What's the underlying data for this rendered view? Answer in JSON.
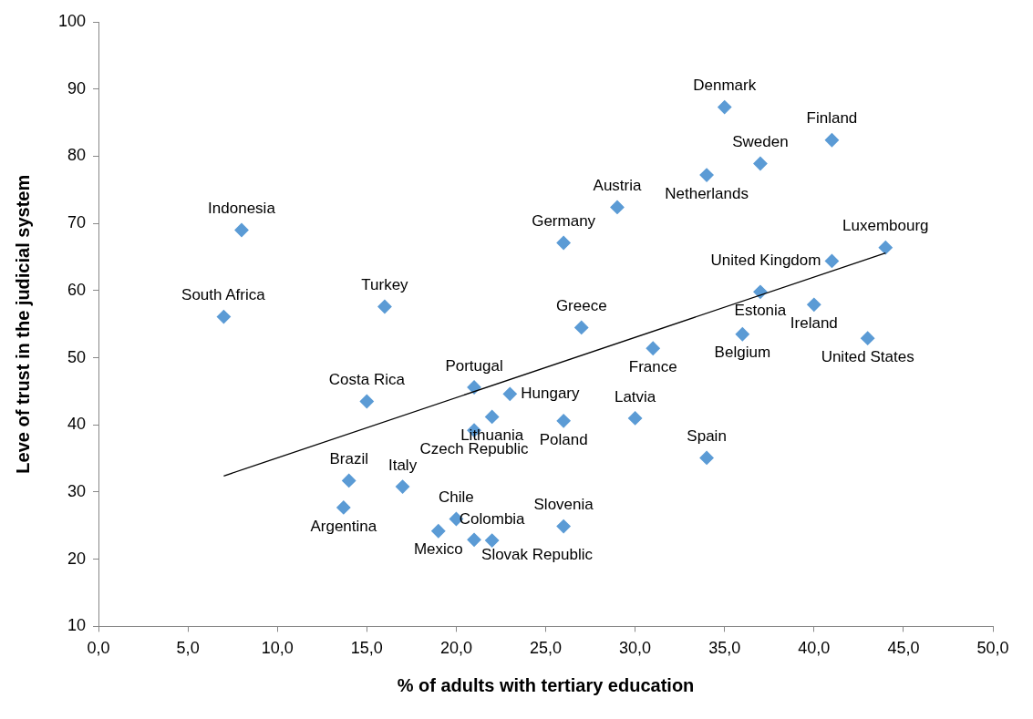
{
  "chart_data": {
    "type": "scatter",
    "xlabel": "% of adults with tertiary education",
    "ylabel": "Leve of trust in the judicial system",
    "xlim": [
      0,
      50
    ],
    "xticks": [
      {
        "value": 0,
        "label": "0,0"
      },
      {
        "value": 5,
        "label": "5,0"
      },
      {
        "value": 10,
        "label": "10,0"
      },
      {
        "value": 15,
        "label": "15,0"
      },
      {
        "value": 20,
        "label": "20,0"
      },
      {
        "value": 25,
        "label": "25,0"
      },
      {
        "value": 30,
        "label": "30,0"
      },
      {
        "value": 35,
        "label": "35,0"
      },
      {
        "value": 40,
        "label": "40,0"
      },
      {
        "value": 45,
        "label": "45,0"
      },
      {
        "value": 50,
        "label": "50,0"
      }
    ],
    "ylim": [
      10,
      100
    ],
    "yticks": [
      10,
      20,
      30,
      40,
      50,
      60,
      70,
      80,
      90,
      100
    ],
    "grid": false,
    "marker": "diamond",
    "series": [
      {
        "color": "#5b9bd5",
        "x": [
          35,
          41,
          37,
          34,
          29,
          26,
          44,
          41,
          37,
          40,
          36,
          43,
          27,
          31,
          8,
          7,
          16,
          15,
          21,
          23,
          22,
          21,
          26,
          30,
          34,
          14,
          17,
          13.7,
          20,
          19,
          21,
          22,
          26
        ],
        "values": [
          87.3,
          82.4,
          78.9,
          77.2,
          72.4,
          67.1,
          66.4,
          64.4,
          59.8,
          57.9,
          53.5,
          52.9,
          54.5,
          51.4,
          69.0,
          56.1,
          57.6,
          43.5,
          45.6,
          44.6,
          41.2,
          39.2,
          40.6,
          41.0,
          35.1,
          31.7,
          30.8,
          27.7,
          26.0,
          24.2,
          22.9,
          22.8,
          24.9
        ]
      },
      {
        "type": "line",
        "color": "#000000",
        "marker": "none",
        "x": [
          7,
          44
        ],
        "values": [
          32.4,
          65.6
        ]
      }
    ],
    "annotations": [
      {
        "text": "Denmark",
        "x": 35,
        "y": 87.3
      },
      {
        "text": "Finland",
        "x": 41,
        "y": 82.4
      },
      {
        "text": "Sweden",
        "x": 37,
        "y": 78.9
      },
      {
        "text": "Netherlands",
        "x": 34,
        "y": 77.2
      },
      {
        "text": "Austria",
        "x": 29,
        "y": 72.4
      },
      {
        "text": "Germany",
        "x": 26,
        "y": 67.1
      },
      {
        "text": "Luxembourg",
        "x": 44,
        "y": 66.4
      },
      {
        "text": "United Kingdom",
        "x": 41,
        "y": 64.4
      },
      {
        "text": "Estonia",
        "x": 37,
        "y": 59.8
      },
      {
        "text": "Ireland",
        "x": 40,
        "y": 57.9
      },
      {
        "text": "Belgium",
        "x": 36,
        "y": 53.5
      },
      {
        "text": "United States",
        "x": 43,
        "y": 52.9
      },
      {
        "text": "Greece",
        "x": 27,
        "y": 54.5
      },
      {
        "text": "France",
        "x": 31,
        "y": 51.4
      },
      {
        "text": "Indonesia",
        "x": 8,
        "y": 69.0
      },
      {
        "text": "South Africa",
        "x": 7,
        "y": 56.1
      },
      {
        "text": "Turkey",
        "x": 16,
        "y": 57.6
      },
      {
        "text": "Costa Rica",
        "x": 15,
        "y": 43.5
      },
      {
        "text": "Portugal",
        "x": 21,
        "y": 45.6
      },
      {
        "text": "Hungary",
        "x": 23,
        "y": 44.6
      },
      {
        "text": "Lithuania",
        "x": 22,
        "y": 41.2
      },
      {
        "text": "Czech Republic",
        "x": 21,
        "y": 39.2
      },
      {
        "text": "Poland",
        "x": 26,
        "y": 40.6
      },
      {
        "text": "Latvia",
        "x": 30,
        "y": 41.0
      },
      {
        "text": "Spain",
        "x": 34,
        "y": 35.1
      },
      {
        "text": "Brazil",
        "x": 14,
        "y": 31.7
      },
      {
        "text": "Italy",
        "x": 17,
        "y": 30.8
      },
      {
        "text": "Argentina",
        "x": 13.7,
        "y": 27.7
      },
      {
        "text": "Chile",
        "x": 20,
        "y": 26.0
      },
      {
        "text": "Mexico",
        "x": 19,
        "y": 24.2
      },
      {
        "text": "Slovak Republic",
        "x": 21,
        "y": 22.9
      },
      {
        "text": "Colombia",
        "x": 22,
        "y": 22.8
      },
      {
        "text": "Slovenia",
        "x": 26,
        "y": 24.9
      }
    ]
  }
}
